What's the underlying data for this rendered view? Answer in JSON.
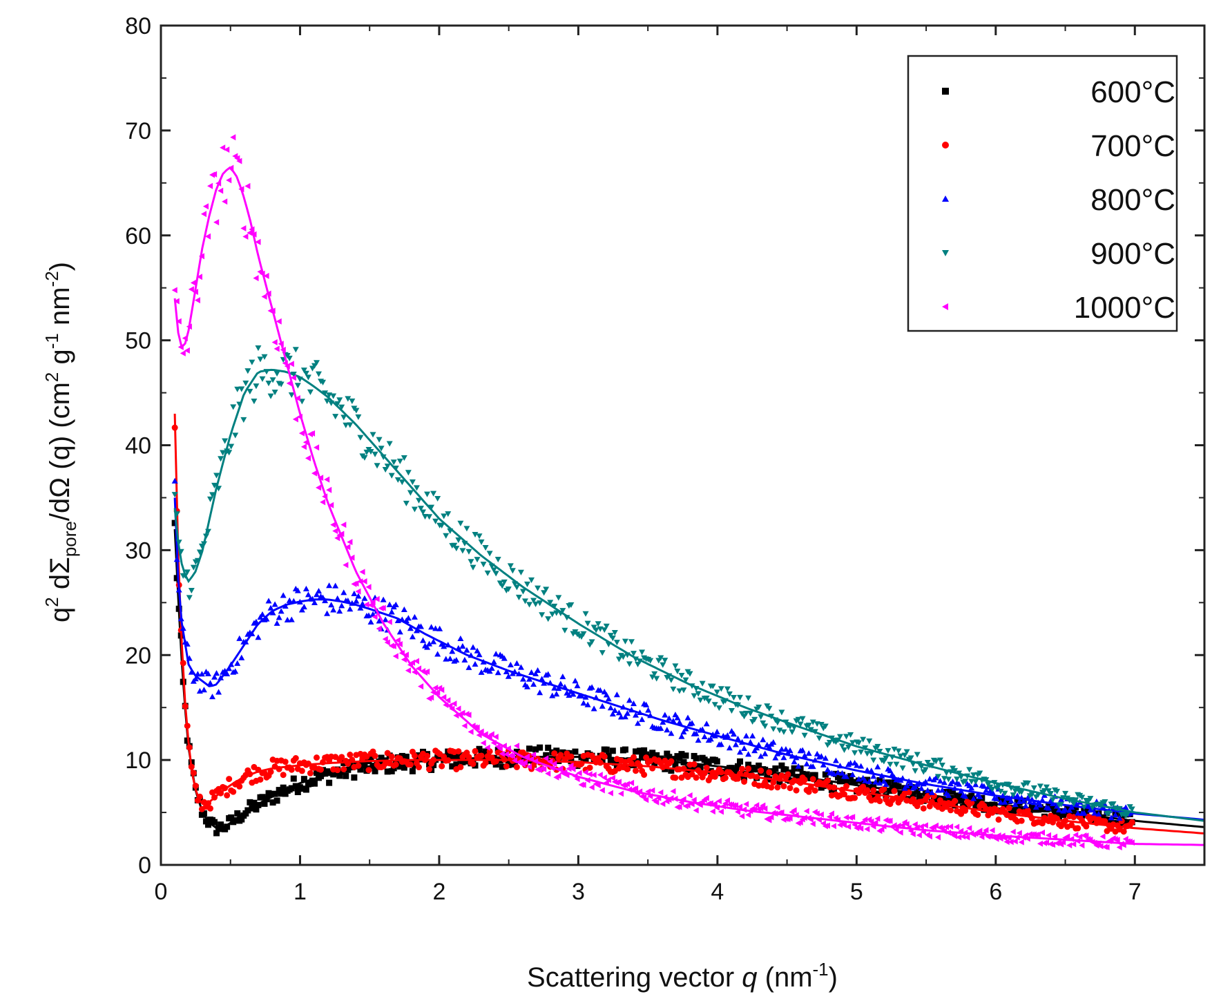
{
  "chart_data": {
    "type": "scatter",
    "title": "",
    "xlabel": {
      "prefix": "Scattering vector ",
      "var": "q",
      "unit_open": " (nm",
      "unit_sup": "-1",
      "unit_close": ")"
    },
    "ylabel": {
      "p1": "q",
      "p1_sup": "2",
      "p2": " d",
      "sigma": "Σ",
      "sigma_sub": "pore",
      "p3": "/dΩ (q) (cm",
      "p3_sup": "2",
      "p4": " g",
      "p4_sup": "-1",
      "p5": " nm",
      "p5_sup": "-2",
      "p6": ")"
    },
    "xlim": [
      0,
      7.5
    ],
    "ylim": [
      0,
      80
    ],
    "x_ticks": [
      0,
      1,
      2,
      3,
      4,
      5,
      6,
      7
    ],
    "y_ticks": [
      0,
      10,
      20,
      30,
      40,
      50,
      60,
      70,
      80
    ],
    "legend_position": "top-right",
    "series": [
      {
        "name": "600°C",
        "color": "#000000",
        "marker": "square",
        "x": [
          0.1,
          0.13,
          0.16,
          0.2,
          0.25,
          0.3,
          0.35,
          0.4,
          0.45,
          0.5,
          0.55,
          0.6,
          0.7,
          0.8,
          0.9,
          1.0,
          1.2,
          1.4,
          1.6,
          1.8,
          2.0,
          2.3,
          2.6,
          3.0,
          3.4,
          3.8,
          4.2,
          4.6,
          5.0,
          5.5,
          6.0,
          6.5,
          7.0,
          7.5
        ],
        "y": [
          32,
          24,
          17,
          11,
          7,
          5,
          4,
          3.5,
          3.6,
          4,
          4.5,
          5,
          5.8,
          6.5,
          7.2,
          7.8,
          8.6,
          9.2,
          9.6,
          9.8,
          10,
          10.2,
          10.3,
          10.3,
          10.1,
          9.7,
          9.1,
          8.4,
          7.6,
          6.7,
          5.8,
          5.0,
          4.2,
          3.6
        ]
      },
      {
        "name": "700°C",
        "color": "#ff0000",
        "marker": "circle",
        "x": [
          0.1,
          0.12,
          0.15,
          0.18,
          0.22,
          0.26,
          0.3,
          0.35,
          0.4,
          0.5,
          0.6,
          0.7,
          0.8,
          1.0,
          1.2,
          1.5,
          1.8,
          2.1,
          2.5,
          3.0,
          3.5,
          4.0,
          4.5,
          5.0,
          5.5,
          6.0,
          6.5,
          7.0,
          7.5
        ],
        "y": [
          43,
          31,
          21,
          14,
          9,
          6.5,
          5.8,
          6,
          6.6,
          7.6,
          8.4,
          8.9,
          9.2,
          9.5,
          9.7,
          9.9,
          10,
          10,
          10,
          9.8,
          9.4,
          8.8,
          8,
          7.0,
          6.0,
          5.0,
          4.2,
          3.5,
          3.0
        ]
      },
      {
        "name": "800°C",
        "color": "#0000ff",
        "marker": "triangle-up",
        "x": [
          0.1,
          0.12,
          0.15,
          0.2,
          0.25,
          0.3,
          0.35,
          0.4,
          0.5,
          0.6,
          0.7,
          0.8,
          0.9,
          1.0,
          1.1,
          1.2,
          1.3,
          1.4,
          1.5,
          1.7,
          1.9,
          2.2,
          2.5,
          2.8,
          3.2,
          3.6,
          4.0,
          4.5,
          5.0,
          5.5,
          6.0,
          6.5,
          7.0,
          7.5
        ],
        "y": [
          35,
          28,
          23,
          19,
          18,
          17.5,
          17,
          17.2,
          19,
          21,
          23,
          24.2,
          24.8,
          25.1,
          25.3,
          25.3,
          25.1,
          24.8,
          24.4,
          23.5,
          22,
          20,
          18.5,
          17.2,
          15.5,
          13.8,
          12.3,
          10.5,
          9.0,
          7.7,
          6.6,
          5.7,
          4.9,
          4.3
        ]
      },
      {
        "name": "900°C",
        "color": "#008080",
        "marker": "triangle-down",
        "x": [
          0.1,
          0.13,
          0.16,
          0.2,
          0.25,
          0.3,
          0.35,
          0.4,
          0.5,
          0.6,
          0.7,
          0.8,
          0.9,
          1.0,
          1.1,
          1.2,
          1.4,
          1.6,
          1.8,
          2.0,
          2.3,
          2.6,
          3.0,
          3.4,
          3.8,
          4.2,
          4.6,
          5.0,
          5.5,
          6.0,
          6.5,
          7.0,
          7.5
        ],
        "y": [
          34,
          30,
          28,
          27,
          28,
          30,
          33,
          36,
          41,
          45,
          47,
          47.2,
          47,
          46.5,
          45.6,
          44.6,
          42,
          39,
          36,
          33,
          29.5,
          26.5,
          23,
          19.8,
          17.2,
          15,
          13.1,
          11.3,
          9.5,
          7.8,
          6.3,
          5.0,
          4.2
        ]
      },
      {
        "name": "1000°C",
        "color": "#ff00ff",
        "marker": "triangle-left",
        "x": [
          0.1,
          0.13,
          0.16,
          0.2,
          0.25,
          0.3,
          0.35,
          0.4,
          0.45,
          0.5,
          0.55,
          0.6,
          0.65,
          0.7,
          0.8,
          0.9,
          1.0,
          1.1,
          1.2,
          1.4,
          1.6,
          1.8,
          2.0,
          2.3,
          2.6,
          3.0,
          3.4,
          3.8,
          4.2,
          4.6,
          5.0,
          5.5,
          6.0,
          6.5,
          7.0,
          7.5
        ],
        "y": [
          54,
          50,
          49,
          51,
          55,
          59,
          62,
          64.5,
          66,
          66.5,
          65.5,
          63.5,
          61,
          58,
          53,
          48,
          43,
          38.5,
          34.5,
          28,
          23,
          19,
          16,
          12.5,
          10.3,
          8.4,
          7.0,
          6.0,
          5.2,
          4.6,
          4.0,
          3.3,
          2.8,
          2.4,
          2.0,
          1.9
        ]
      }
    ]
  }
}
